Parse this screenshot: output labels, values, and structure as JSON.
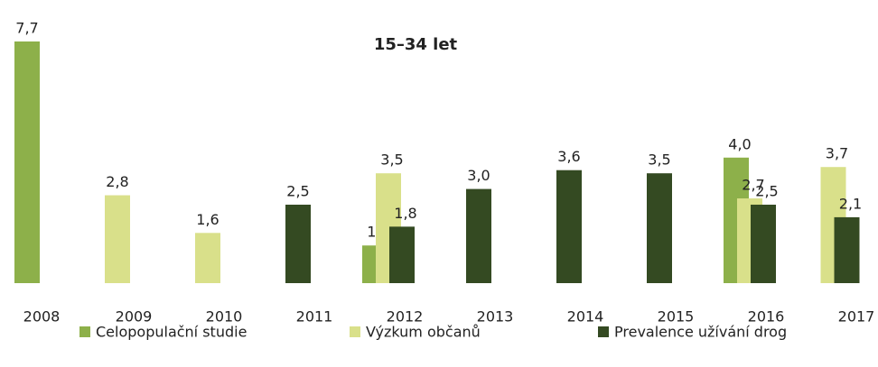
{
  "chart_data": {
    "type": "bar",
    "title": "15–34 let",
    "categories": [
      "2008",
      "2009",
      "2010",
      "2011",
      "2012",
      "2013",
      "2014",
      "2015",
      "2016",
      "2017"
    ],
    "series": [
      {
        "name": "Celopopulační studie",
        "color": "#8db04a",
        "values": [
          7.7,
          null,
          null,
          null,
          1.2,
          null,
          null,
          null,
          4.0,
          null
        ],
        "value_labels": [
          "7,7",
          null,
          null,
          null,
          "1,2",
          null,
          null,
          null,
          "4,0",
          null
        ]
      },
      {
        "name": "Výzkum občanů",
        "color": "#d9e08a",
        "values": [
          null,
          2.8,
          1.6,
          null,
          3.5,
          null,
          null,
          null,
          2.7,
          3.7
        ],
        "value_labels": [
          null,
          "2,8",
          "1,6",
          null,
          "3,5",
          null,
          null,
          null,
          "2,7",
          "3,7"
        ]
      },
      {
        "name": "Prevalence užívání drog",
        "color": "#344a22",
        "values": [
          null,
          null,
          null,
          2.5,
          1.8,
          3.0,
          3.6,
          3.5,
          2.5,
          2.1
        ],
        "value_labels": [
          null,
          null,
          null,
          "2,5",
          "1,8",
          "3,0",
          "3,6",
          "3,5",
          "2,5",
          "2,1"
        ]
      }
    ],
    "legend": "bottom"
  }
}
